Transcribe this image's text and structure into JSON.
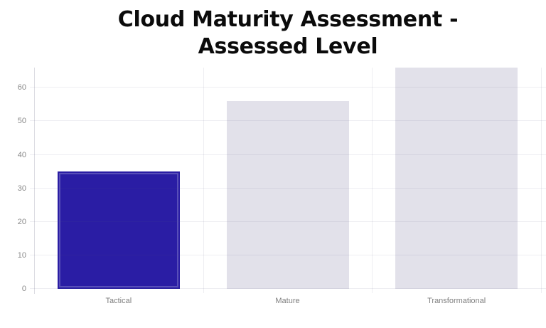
{
  "title": {
    "line1": "Cloud Maturity Assessment -",
    "line2": "Assessed Level"
  },
  "colors": {
    "background": "#ffffff",
    "title_text": "#0b0b0b",
    "selected_bar": "#2a1da4",
    "selected_bar_inner_stroke": "#6a62c9",
    "default_bar": "#e2e1ea",
    "gridline": "#ececf1",
    "axis_line": "#dcdce2",
    "y_tick_label": "#8a8a8a",
    "x_category_label": "#7e7e7e"
  },
  "chart_data": {
    "type": "bar",
    "title": "Cloud Maturity Assessment - Assessed Level",
    "categories": [
      "Tactical",
      "Mature",
      "Transformational"
    ],
    "values": [
      35,
      56,
      66
    ],
    "highlighted_category": "Tactical",
    "xlabel": "",
    "ylabel": "",
    "ylim": [
      0,
      66
    ],
    "yticks": [
      0,
      10,
      20,
      30,
      40,
      50,
      60
    ],
    "grid": true,
    "legend": false,
    "data_labels": false
  }
}
